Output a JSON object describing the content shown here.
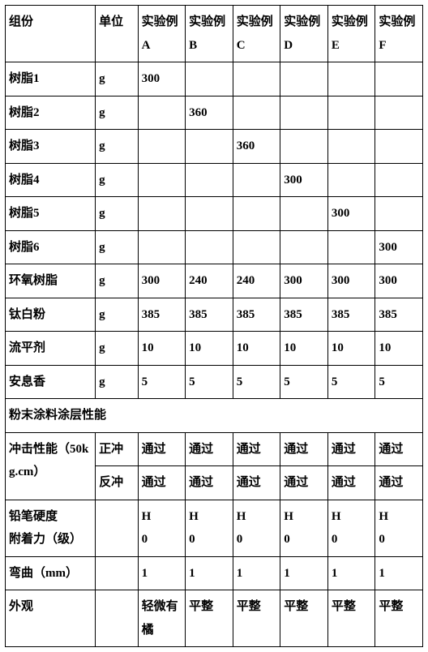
{
  "header": {
    "component": "组份",
    "unit": "单位",
    "expA": "实验例A",
    "expB": "实验例B",
    "expC": "实验例C",
    "expD": "实验例D",
    "expE": "实验例E",
    "expF": "实验例F"
  },
  "rows": [
    {
      "name": "树脂1",
      "unit": "g",
      "a": "300",
      "b": "",
      "c": "",
      "d": "",
      "e": "",
      "f": ""
    },
    {
      "name": "树脂2",
      "unit": "g",
      "a": "",
      "b": "360",
      "c": "",
      "d": "",
      "e": "",
      "f": ""
    },
    {
      "name": "树脂3",
      "unit": "g",
      "a": "",
      "b": "",
      "c": "360",
      "d": "",
      "e": "",
      "f": ""
    },
    {
      "name": "树脂4",
      "unit": "g",
      "a": "",
      "b": "",
      "c": "",
      "d": "300",
      "e": "",
      "f": ""
    },
    {
      "name": "树脂5",
      "unit": "g",
      "a": "",
      "b": "",
      "c": "",
      "d": "",
      "e": "300",
      "f": ""
    },
    {
      "name": "树脂6",
      "unit": "g",
      "a": "",
      "b": "",
      "c": "",
      "d": "",
      "e": "",
      "f": "300"
    },
    {
      "name": "环氧树脂",
      "unit": "g",
      "a": "300",
      "b": "240",
      "c": "240",
      "d": "300",
      "e": "300",
      "f": "300"
    },
    {
      "name": "钛白粉",
      "unit": "g",
      "a": "385",
      "b": "385",
      "c": "385",
      "d": "385",
      "e": "385",
      "f": "385"
    },
    {
      "name": "流平剂",
      "unit": "g",
      "a": "10",
      "b": "10",
      "c": "10",
      "d": "10",
      "e": "10",
      "f": "10"
    },
    {
      "name": "安息香",
      "unit": "g",
      "a": "5",
      "b": "5",
      "c": "5",
      "d": "5",
      "e": "5",
      "f": "5"
    }
  ],
  "sectionHeader": "粉末涂料涂层性能",
  "impact": {
    "label": "冲击性能（50kg.cm）",
    "forward": {
      "label": "正冲",
      "a": "通过",
      "b": "通过",
      "c": "通过",
      "d": "通过",
      "e": "通过",
      "f": "通过"
    },
    "reverse": {
      "label": "反冲",
      "a": "通过",
      "b": "通过",
      "c": "通过",
      "d": "通过",
      "e": "通过",
      "f": "通过"
    }
  },
  "pencil": {
    "label": "铅笔硬度",
    "a": "H",
    "b": "H",
    "c": "H",
    "d": "H",
    "e": "H",
    "f": "H"
  },
  "adhesion": {
    "label": "附着力（级）",
    "a": "0",
    "b": "0",
    "c": "0",
    "d": "0",
    "e": "0",
    "f": "0"
  },
  "bend": {
    "label": "弯曲（mm）",
    "a": "1",
    "b": "1",
    "c": "1",
    "d": "1",
    "e": "1",
    "f": "1"
  },
  "appearance": {
    "label": "外观",
    "a": "轻微有橘",
    "b": "平整",
    "c": "平整",
    "d": "平整",
    "e": "平整",
    "f": "平整"
  }
}
